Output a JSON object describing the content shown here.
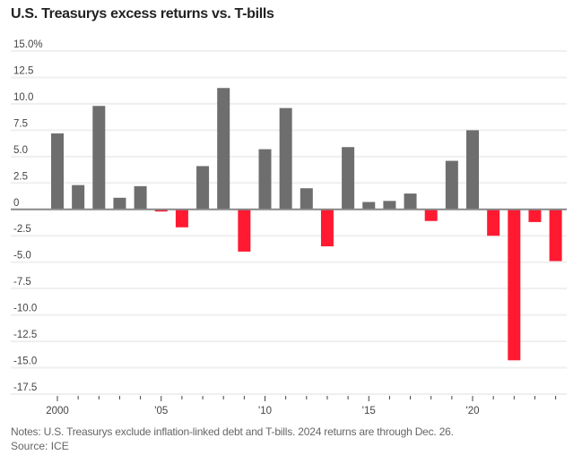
{
  "chart_data": {
    "type": "bar",
    "title": "U.S. Treasurys excess returns vs. T-bills",
    "xlabel": "",
    "ylabel": "",
    "ylim": [
      -17.5,
      15.0
    ],
    "yticks": [
      15.0,
      12.5,
      10.0,
      7.5,
      5.0,
      2.5,
      0,
      -2.5,
      -5.0,
      -7.5,
      -10.0,
      -12.5,
      -15.0,
      -17.5
    ],
    "ytick_labels": [
      "15.0%",
      "12.5",
      "10.0",
      "7.5",
      "5.0",
      "2.5",
      "0",
      "-2.5",
      "-5.0",
      "-7.5",
      "-10.0",
      "-12.5",
      "-15.0",
      "-17.5"
    ],
    "xtick_years": [
      2000,
      2005,
      2010,
      2015,
      2020
    ],
    "xtick_labels": [
      "2000",
      "'05",
      "'10",
      "'15",
      "'20"
    ],
    "grid": true,
    "categories": [
      2000,
      2001,
      2002,
      2003,
      2004,
      2005,
      2006,
      2007,
      2008,
      2009,
      2010,
      2011,
      2012,
      2013,
      2014,
      2015,
      2016,
      2017,
      2018,
      2019,
      2020,
      2021,
      2022,
      2023,
      2024
    ],
    "values": [
      7.2,
      2.3,
      9.8,
      1.1,
      2.2,
      -0.2,
      -1.7,
      4.1,
      11.5,
      -4.0,
      5.7,
      9.6,
      2.0,
      -3.5,
      5.9,
      0.7,
      0.8,
      1.5,
      -1.1,
      4.6,
      7.5,
      -2.5,
      -14.3,
      -1.2,
      -4.9
    ],
    "colors": {
      "positive": "#6e6e6e",
      "negative": "#ff1a31",
      "grid": "#efefef",
      "axis": "#888888"
    }
  },
  "notes": "Notes: U.S. Treasurys exclude inflation-linked debt and T-bills. 2024 returns are through Dec. 26.",
  "source": "Source: ICE"
}
